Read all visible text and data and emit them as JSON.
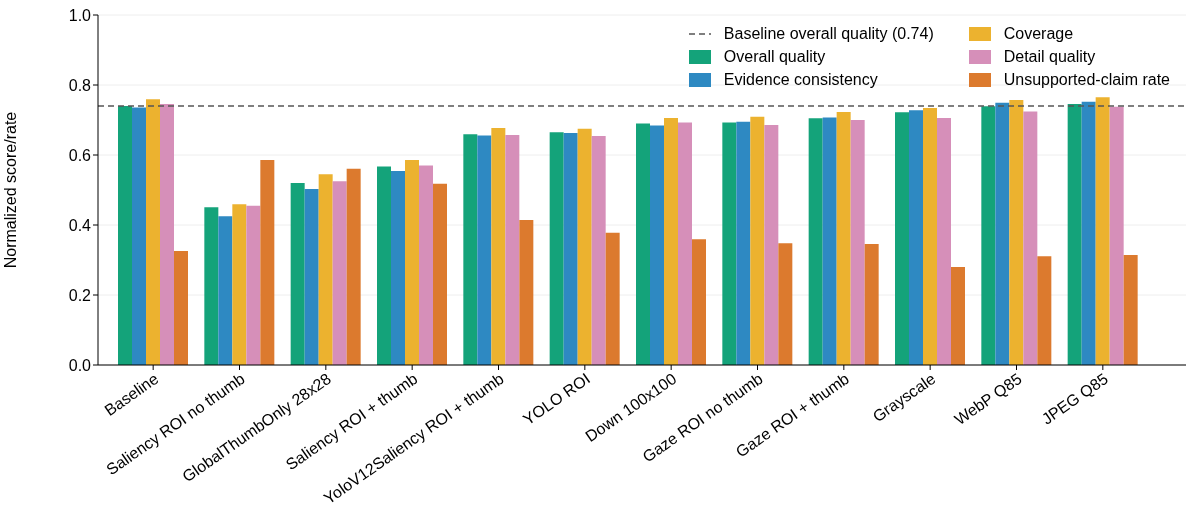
{
  "chart_data": {
    "type": "bar",
    "ylabel": "Normalized score/rate",
    "categories": [
      "Baseline",
      "Saliency ROI no thumb",
      "GlobalThumbOnly 28x28",
      "Saliency ROI + thumb",
      "YoloV12Saliency ROI + thumb",
      "YOLO ROI",
      "Down 100x100",
      "Gaze ROI no thumb",
      "Gaze ROI + thumb",
      "Grayscale",
      "WebP Q85",
      "JPEG Q85"
    ],
    "series": [
      {
        "name": "Overall quality",
        "color": "#14a37a",
        "values": [
          0.74,
          0.451,
          0.52,
          0.567,
          0.659,
          0.665,
          0.69,
          0.693,
          0.705,
          0.722,
          0.739,
          0.746
        ]
      },
      {
        "name": "Evidence consistency",
        "color": "#2e89c2",
        "values": [
          0.736,
          0.425,
          0.503,
          0.554,
          0.656,
          0.663,
          0.684,
          0.695,
          0.707,
          0.728,
          0.749,
          0.752
        ]
      },
      {
        "name": "Coverage",
        "color": "#ecb22f",
        "values": [
          0.759,
          0.459,
          0.545,
          0.586,
          0.677,
          0.675,
          0.706,
          0.709,
          0.723,
          0.734,
          0.757,
          0.765
        ]
      },
      {
        "name": "Detail quality",
        "color": "#d68fb9",
        "values": [
          0.746,
          0.455,
          0.525,
          0.57,
          0.657,
          0.654,
          0.693,
          0.686,
          0.7,
          0.706,
          0.724,
          0.738
        ]
      },
      {
        "name": "Unsupported-claim rate",
        "color": "#dc7a2e",
        "values": [
          0.326,
          0.586,
          0.561,
          0.518,
          0.414,
          0.378,
          0.359,
          0.348,
          0.346,
          0.28,
          0.311,
          0.314
        ]
      }
    ],
    "ylim": [
      0,
      1
    ],
    "yticks": [
      {
        "value": 0,
        "label": "0.0"
      },
      0.2,
      0.4,
      0.6,
      0.8,
      {
        "value": 1,
        "label": "1.0"
      }
    ],
    "grid": "y",
    "legend": "top right",
    "ref_lines": [
      {
        "axis": "y",
        "value": 0.74,
        "label": "Baseline overall quality (0.74)",
        "color": "#555555",
        "line_style": "dashed"
      }
    ]
  }
}
